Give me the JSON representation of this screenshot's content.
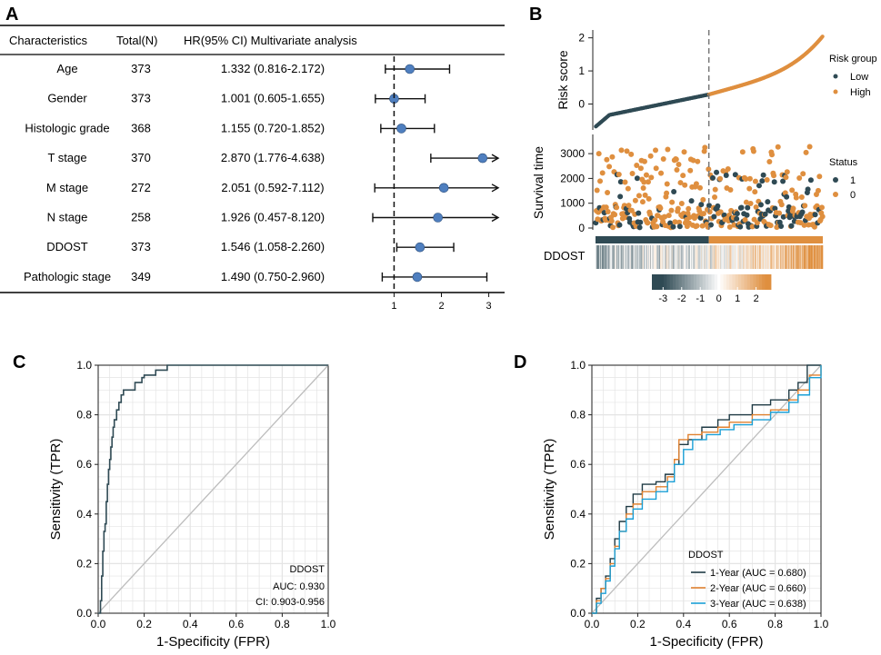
{
  "panel_labels": {
    "a": "A",
    "b": "B",
    "c": "C",
    "d": "D"
  },
  "colors": {
    "low": "#2f4a54",
    "high": "#df8f3f",
    "forest_point": "#4f7fbf",
    "roc_c": "#2f4a54",
    "year1": "#1f3a44",
    "year2": "#e0812f",
    "year3": "#1a9fd6",
    "grid": "#e4e4e4",
    "diag": "#bdbdbd"
  },
  "chart_data": [
    {
      "panel": "A",
      "type": "forest",
      "headers": {
        "c1": "Characteristics",
        "c2": "Total(N)",
        "c3": "HR(95% CI) Multivariate analysis"
      },
      "rows": [
        {
          "name": "Age",
          "n": "373",
          "hr_text": "1.332 (0.816-2.172)",
          "hr": 1.332,
          "lo": 0.816,
          "hi": 2.172,
          "arrow": false
        },
        {
          "name": "Gender",
          "n": "373",
          "hr_text": "1.001 (0.605-1.655)",
          "hr": 1.001,
          "lo": 0.605,
          "hi": 1.655,
          "arrow": false
        },
        {
          "name": "Histologic grade",
          "n": "368",
          "hr_text": "1.155 (0.720-1.852)",
          "hr": 1.155,
          "lo": 0.72,
          "hi": 1.852,
          "arrow": false
        },
        {
          "name": "T stage",
          "n": "370",
          "hr_text": "2.870 (1.776-4.638)",
          "hr": 2.87,
          "lo": 1.776,
          "hi": 4.638,
          "arrow": true
        },
        {
          "name": "M stage",
          "n": "272",
          "hr_text": "2.051 (0.592-7.112)",
          "hr": 2.051,
          "lo": 0.592,
          "hi": 7.112,
          "arrow": true
        },
        {
          "name": "N stage",
          "n": "258",
          "hr_text": "1.926 (0.457-8.120)",
          "hr": 1.926,
          "lo": 0.457,
          "hi": 8.12,
          "arrow": true
        },
        {
          "name": "DDOST",
          "n": "373",
          "hr_text": "1.546 (1.058-2.260)",
          "hr": 1.546,
          "lo": 1.058,
          "hi": 2.26,
          "arrow": false
        },
        {
          "name": "Pathologic stage",
          "n": "349",
          "hr_text": "1.490 (0.750-2.960)",
          "hr": 1.49,
          "lo": 0.75,
          "hi": 2.96,
          "arrow": false
        }
      ],
      "x_ticks": [
        1,
        2,
        3
      ],
      "xlim": [
        0.55,
        3.2
      ],
      "reference": 1
    },
    {
      "panel": "B",
      "type": "risk-plot",
      "n": 373,
      "cutoff_index": 186,
      "risk_ylabel": "Risk score",
      "risk_ylim": [
        -0.7,
        2.1
      ],
      "risk_ticks": [
        "0",
        "1",
        "2"
      ],
      "risk_tick_values": [
        0,
        1,
        2
      ],
      "risk_legend": {
        "title": "Risk group",
        "low": "Low",
        "high": "High"
      },
      "survival_ylabel": "Survival time",
      "survival_ylim": [
        0,
        3700
      ],
      "survival_ticks": [
        "0",
        "1000",
        "2000",
        "3000"
      ],
      "survival_tick_values": [
        0,
        1000,
        2000,
        3000
      ],
      "survival_legend": {
        "title": "Status",
        "s1": "1",
        "s0": "0"
      },
      "heatmap_label": "DDOST",
      "scale_ticks": [
        "-3",
        "-2",
        "-1",
        "0",
        "1",
        "2"
      ],
      "scale_values": [
        -3,
        -2,
        -1,
        0,
        1,
        2
      ],
      "scale_range": [
        -3.6,
        2.8
      ]
    },
    {
      "panel": "C",
      "type": "roc",
      "xlabel": "1-Specificity (FPR)",
      "ylabel": "Sensitivity (TPR)",
      "ticks": [
        "0.0",
        "0.2",
        "0.4",
        "0.6",
        "0.8",
        "1.0"
      ],
      "tick_values": [
        0,
        0.2,
        0.4,
        0.6,
        0.8,
        1.0
      ],
      "xlim": [
        0,
        1
      ],
      "ylim": [
        0,
        1
      ],
      "legend": {
        "title": "DDOST",
        "auc": "AUC: 0.930",
        "ci": "CI: 0.903-0.956"
      },
      "curve": [
        [
          0,
          0
        ],
        [
          0.01,
          0.05
        ],
        [
          0.015,
          0.15
        ],
        [
          0.02,
          0.25
        ],
        [
          0.025,
          0.33
        ],
        [
          0.03,
          0.36
        ],
        [
          0.035,
          0.45
        ],
        [
          0.04,
          0.52
        ],
        [
          0.045,
          0.58
        ],
        [
          0.05,
          0.62
        ],
        [
          0.055,
          0.67
        ],
        [
          0.06,
          0.71
        ],
        [
          0.065,
          0.75
        ],
        [
          0.07,
          0.78
        ],
        [
          0.08,
          0.82
        ],
        [
          0.09,
          0.85
        ],
        [
          0.1,
          0.88
        ],
        [
          0.11,
          0.9
        ],
        [
          0.15,
          0.9
        ],
        [
          0.16,
          0.93
        ],
        [
          0.18,
          0.93
        ],
        [
          0.19,
          0.95
        ],
        [
          0.2,
          0.96
        ],
        [
          0.24,
          0.96
        ],
        [
          0.25,
          0.98
        ],
        [
          0.29,
          0.98
        ],
        [
          0.3,
          1.0
        ],
        [
          1.0,
          1.0
        ]
      ]
    },
    {
      "panel": "D",
      "type": "roc",
      "xlabel": "1-Specificity (FPR)",
      "ylabel": "Sensitivity (TPR)",
      "ticks": [
        "0.0",
        "0.2",
        "0.4",
        "0.6",
        "0.8",
        "1.0"
      ],
      "tick_values": [
        0,
        0.2,
        0.4,
        0.6,
        0.8,
        1.0
      ],
      "xlim": [
        0,
        1
      ],
      "ylim": [
        0,
        1
      ],
      "legend_title": "DDOST",
      "series": [
        {
          "name": "1-Year (AUC = 0.680)",
          "points": [
            [
              0,
              0
            ],
            [
              0.02,
              0.06
            ],
            [
              0.04,
              0.1
            ],
            [
              0.06,
              0.15
            ],
            [
              0.08,
              0.22
            ],
            [
              0.1,
              0.3
            ],
            [
              0.12,
              0.37
            ],
            [
              0.15,
              0.43
            ],
            [
              0.18,
              0.48
            ],
            [
              0.22,
              0.52
            ],
            [
              0.28,
              0.53
            ],
            [
              0.32,
              0.56
            ],
            [
              0.36,
              0.6
            ],
            [
              0.38,
              0.68
            ],
            [
              0.42,
              0.7
            ],
            [
              0.48,
              0.75
            ],
            [
              0.55,
              0.78
            ],
            [
              0.6,
              0.8
            ],
            [
              0.7,
              0.84
            ],
            [
              0.78,
              0.86
            ],
            [
              0.86,
              0.9
            ],
            [
              0.9,
              0.93
            ],
            [
              0.94,
              1.0
            ],
            [
              1.0,
              1.0
            ]
          ]
        },
        {
          "name": "2-Year (AUC = 0.660)",
          "points": [
            [
              0,
              0
            ],
            [
              0.02,
              0.05
            ],
            [
              0.04,
              0.1
            ],
            [
              0.06,
              0.14
            ],
            [
              0.08,
              0.2
            ],
            [
              0.1,
              0.27
            ],
            [
              0.12,
              0.33
            ],
            [
              0.15,
              0.4
            ],
            [
              0.18,
              0.44
            ],
            [
              0.22,
              0.49
            ],
            [
              0.28,
              0.51
            ],
            [
              0.33,
              0.55
            ],
            [
              0.36,
              0.62
            ],
            [
              0.38,
              0.7
            ],
            [
              0.42,
              0.72
            ],
            [
              0.48,
              0.73
            ],
            [
              0.55,
              0.75
            ],
            [
              0.6,
              0.77
            ],
            [
              0.7,
              0.8
            ],
            [
              0.78,
              0.82
            ],
            [
              0.86,
              0.86
            ],
            [
              0.9,
              0.9
            ],
            [
              0.95,
              0.96
            ],
            [
              1.0,
              1.0
            ]
          ]
        },
        {
          "name": "3-Year (AUC = 0.638)",
          "points": [
            [
              0,
              0
            ],
            [
              0.02,
              0.04
            ],
            [
              0.04,
              0.08
            ],
            [
              0.06,
              0.13
            ],
            [
              0.08,
              0.19
            ],
            [
              0.1,
              0.26
            ],
            [
              0.12,
              0.33
            ],
            [
              0.15,
              0.38
            ],
            [
              0.18,
              0.42
            ],
            [
              0.22,
              0.46
            ],
            [
              0.28,
              0.49
            ],
            [
              0.33,
              0.53
            ],
            [
              0.36,
              0.6
            ],
            [
              0.4,
              0.66
            ],
            [
              0.44,
              0.7
            ],
            [
              0.5,
              0.72
            ],
            [
              0.56,
              0.74
            ],
            [
              0.62,
              0.76
            ],
            [
              0.7,
              0.78
            ],
            [
              0.78,
              0.81
            ],
            [
              0.86,
              0.85
            ],
            [
              0.9,
              0.88
            ],
            [
              0.95,
              0.95
            ],
            [
              1.0,
              1.0
            ]
          ]
        }
      ]
    }
  ]
}
